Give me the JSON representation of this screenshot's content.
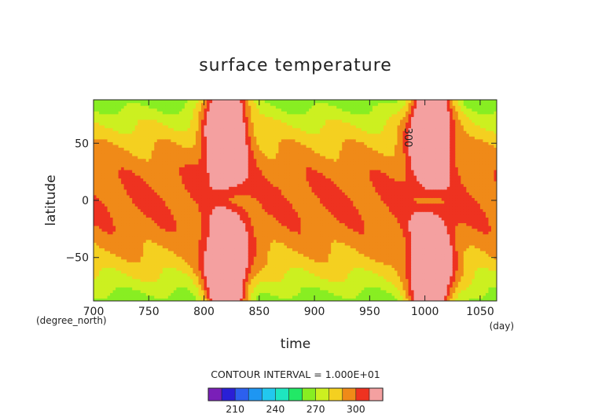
{
  "chart_data": {
    "type": "contour",
    "title": "surface temperature",
    "xlabel": "time",
    "ylabel": "latitude",
    "x_unit": "(day)",
    "y_unit": "(degree_north)",
    "xlim": [
      700,
      1065
    ],
    "ylim": [
      -88,
      88
    ],
    "x_ticks": [
      700,
      750,
      800,
      850,
      900,
      950,
      1000,
      1050
    ],
    "y_ticks": [
      50,
      0,
      -50
    ],
    "contour_interval_text": "CONTOUR INTERVAL = 1.000E+01",
    "contour_label": "300",
    "colorbar": {
      "levels": [
        190,
        200,
        210,
        220,
        230,
        240,
        250,
        260,
        270,
        280,
        290,
        300,
        310
      ],
      "colors": [
        "#7a1fb8",
        "#2a1fd6",
        "#2c60ee",
        "#1e96f2",
        "#22c8ee",
        "#1ee6c0",
        "#22e866",
        "#88ee22",
        "#ccf020",
        "#f4d020",
        "#f08a18",
        "#ee3220",
        "#f4a0a0"
      ],
      "tick_labels": [
        "210",
        "240",
        "270",
        "300"
      ],
      "tick_values": [
        210,
        240,
        270,
        300
      ]
    },
    "grid": false,
    "legend": "bottom-colorbar"
  }
}
